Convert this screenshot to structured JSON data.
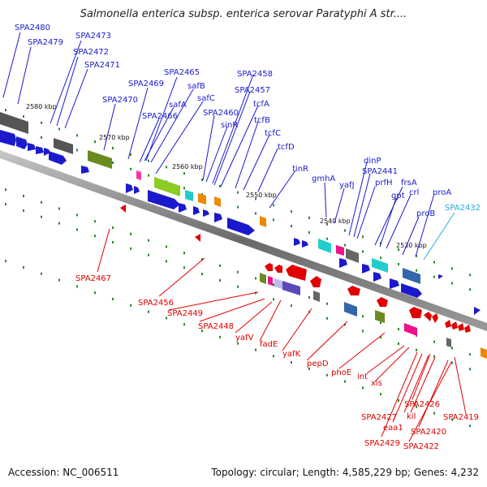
{
  "title": "Salmonella enterica subsp. enterica serovar Paratyphi A str....",
  "accession": "Accession: NC_006511",
  "summary": "Topology: circular; Length: 4,585,229 bp; Genes: 4,232",
  "colors": {
    "forward": "#1a1acc",
    "reverse": "#e00000",
    "highlight": "#22aadd",
    "backbone": "#808080"
  },
  "ticks": [
    "2580 kbp",
    "2570 kbp",
    "2560 kbp",
    "2550 kbp",
    "2540 kbp",
    "2530 kbp"
  ],
  "forward_labels": [
    "SPA2480",
    "SPA2479",
    "SPA2473",
    "SPA2472",
    "SPA2471",
    "SPA2470",
    "SPA2469",
    "SPA2465",
    "safB",
    "safA",
    "SPA2466",
    "safC",
    "SPA2460",
    "sinR",
    "SPA2458",
    "SPA2457",
    "tcfA",
    "tcfB",
    "tcfC",
    "tcfD",
    "tinR",
    "gmhA",
    "yafJ",
    "dinP",
    "SPA2441",
    "prfH",
    "frsA",
    "gpt",
    "crl",
    "proB",
    "proA"
  ],
  "highlight_labels": [
    "SPA2432"
  ],
  "reverse_labels": [
    "SPA2467",
    "SPA2456",
    "SPA2449",
    "SPA2448",
    "yafV",
    "fadE",
    "yafK",
    "pepD",
    "phoE",
    "int",
    "xis",
    "SPA2426",
    "kil",
    "SPA2427",
    "SPA2419",
    "eaa1",
    "SPA2420",
    "SPA2429",
    "SPA2422"
  ]
}
